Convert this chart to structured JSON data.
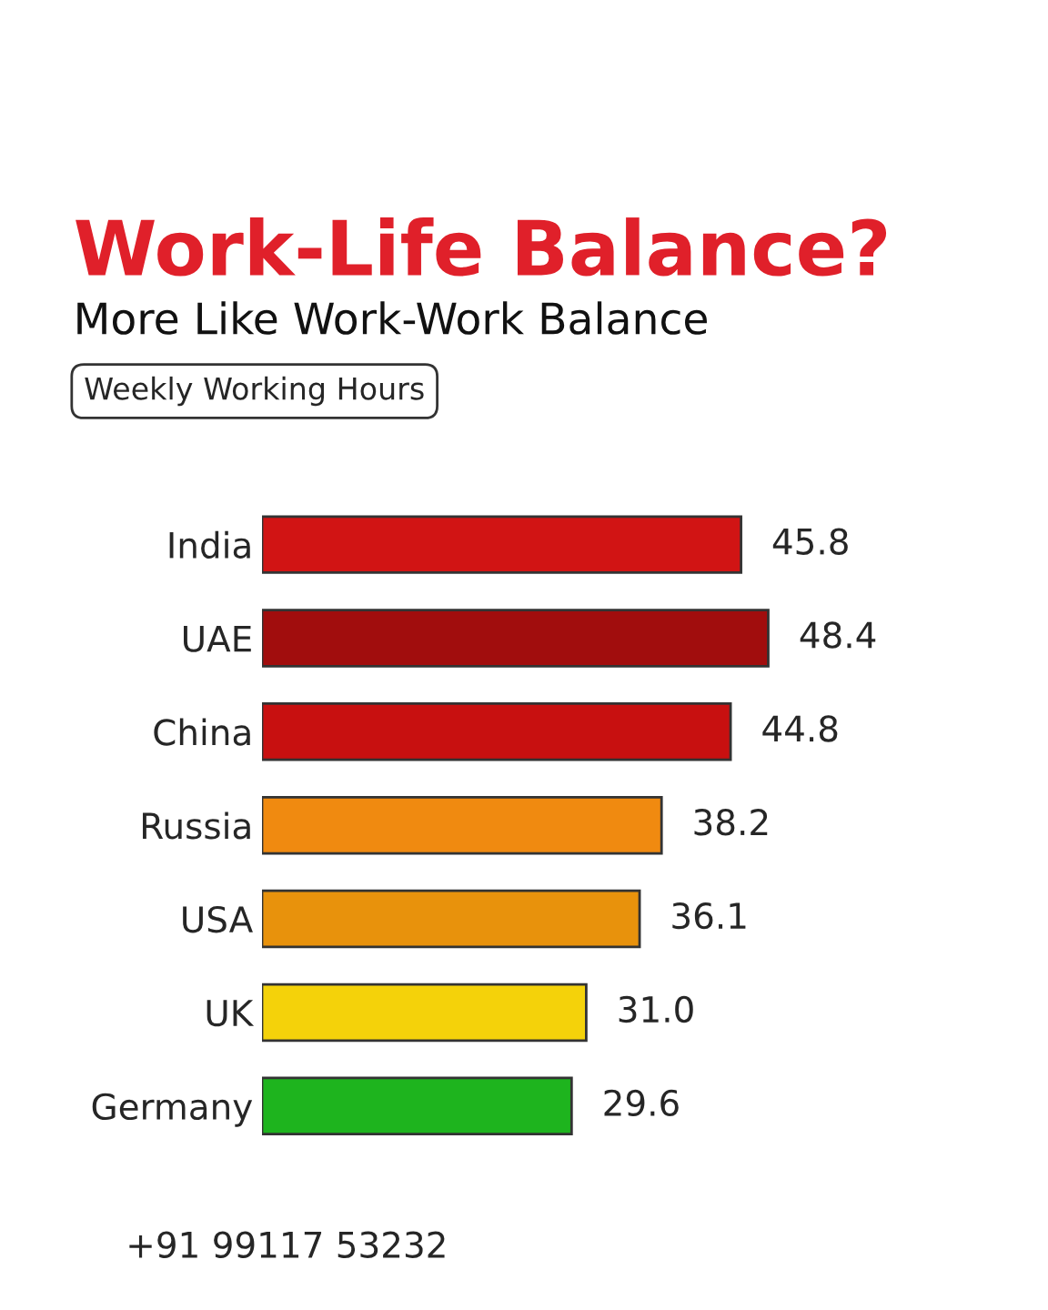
{
  "chart_data": {
    "type": "bar",
    "orientation": "horizontal",
    "title": "Work-Life Balance?",
    "subtitle": "More Like Work-Work Balance",
    "annotations": [
      "Weekly Working Hours",
      "+91 99117 53232"
    ],
    "categories": [
      "India",
      "UAE",
      "China",
      "Russia",
      "USA",
      "UK",
      "Germany"
    ],
    "values": [
      45.8,
      48.4,
      44.8,
      38.2,
      36.1,
      31.0,
      29.6
    ],
    "value_labels": [
      "45.8",
      "48.4",
      "44.8",
      "38.2",
      "36.1",
      "31.0",
      "29.6"
    ],
    "colors": [
      "#d11414",
      "#a10d0d",
      "#c81010",
      "#f08a10",
      "#e8920c",
      "#f4d20a",
      "#1eb41e"
    ],
    "tick_labels": "y",
    "grid": false,
    "legend": false
  }
}
